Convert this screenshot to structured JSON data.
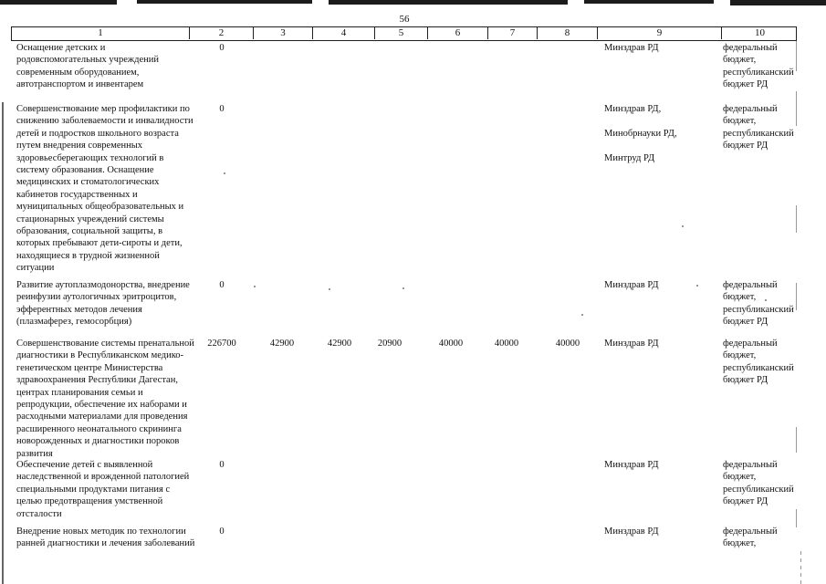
{
  "page": {
    "number": "56"
  },
  "table": {
    "header_columns": [
      "1",
      "2",
      "3",
      "4",
      "5",
      "6",
      "7",
      "8",
      "9",
      "10"
    ],
    "rows": [
      {
        "activity_lines": [
          "Оснащение детских и",
          "родовспомогательных учреждений",
          "современным оборудованием,",
          "автотранспортом и инвентарем"
        ],
        "values": [
          "0",
          "",
          "",
          "",
          "",
          "",
          ""
        ],
        "executor_lines": [
          "Минздрав РД"
        ],
        "funding_lines": [
          "федеральный",
          "бюджет,",
          "республиканский",
          "бюджет РД"
        ]
      },
      {
        "activity_lines": [
          "Совершенствование мер профилактики по",
          "снижению заболеваемости и инвалидности",
          "детей и подростков школьного возраста",
          "путем внедрения современных",
          "здоровьесберегающих технологий в",
          "систему образования. Оснащение",
          "медицинских и стоматологических",
          "кабинетов государственных и",
          "муниципальных общеобразовательных и",
          "стационарных учреждений системы",
          "образования, социальной защиты, в",
          "которых пребывают дети-сироты и дети,",
          "находящиеся в трудной жизненной",
          "ситуации"
        ],
        "values": [
          "0",
          "",
          "",
          "",
          "",
          "",
          ""
        ],
        "executor_lines": [
          "Минздрав РД,",
          "",
          "Минобрнауки РД,",
          "",
          "Минтруд РД"
        ],
        "funding_lines": [
          "федеральный",
          "бюджет,",
          "республиканский",
          "бюджет РД"
        ]
      },
      {
        "activity_lines": [
          "Развитие аутоплазмодонорства, внедрение",
          "реинфузии аутологичных эритроцитов,",
          "эфферентных методов лечения",
          "(плазмаферез, гемосорбция)"
        ],
        "values": [
          "0",
          "",
          "",
          "",
          "",
          "",
          ""
        ],
        "executor_lines": [
          "Минздрав РД"
        ],
        "funding_lines": [
          "федеральный",
          "бюджет,",
          "республиканский",
          "бюджет РД"
        ]
      },
      {
        "activity_lines": [
          "Совершенствование системы пренатальной",
          "диагностики в Республиканском медико-",
          "генетическом центре Министерства",
          "здравоохранения Республики Дагестан,",
          "центрах планирования семьи и",
          "репродукции, обеспечение их наборами и",
          "расходными материалами для проведения",
          "расширенного неонатального скрининга",
          "новорожденных и диагностики пороков",
          "развития"
        ],
        "values": [
          "226700",
          "42900",
          "42900",
          "20900",
          "40000",
          "40000",
          "40000"
        ],
        "executor_lines": [
          "Минздрав РД"
        ],
        "funding_lines": [
          "федеральный",
          "бюджет,",
          "республиканский",
          "бюджет РД"
        ]
      },
      {
        "activity_lines": [
          "Обеспечение детей с выявленной",
          "наследственной и врожденной патологией",
          "специальными продуктами питания с",
          "целью предотвращения умственной",
          "отсталости"
        ],
        "values": [
          "0",
          "",
          "",
          "",
          "",
          "",
          ""
        ],
        "executor_lines": [
          "Минздрав РД"
        ],
        "funding_lines": [
          "федеральный",
          "бюджет,",
          "республиканский",
          "бюджет РД"
        ]
      },
      {
        "activity_lines": [
          "Внедрение новых методик по технологии",
          "ранней диагностики и лечения заболеваний"
        ],
        "values": [
          "0",
          "",
          "",
          "",
          "",
          "",
          ""
        ],
        "executor_lines": [
          "Минздрав РД"
        ],
        "funding_lines": [
          "федеральный",
          "бюджет,"
        ]
      }
    ]
  }
}
